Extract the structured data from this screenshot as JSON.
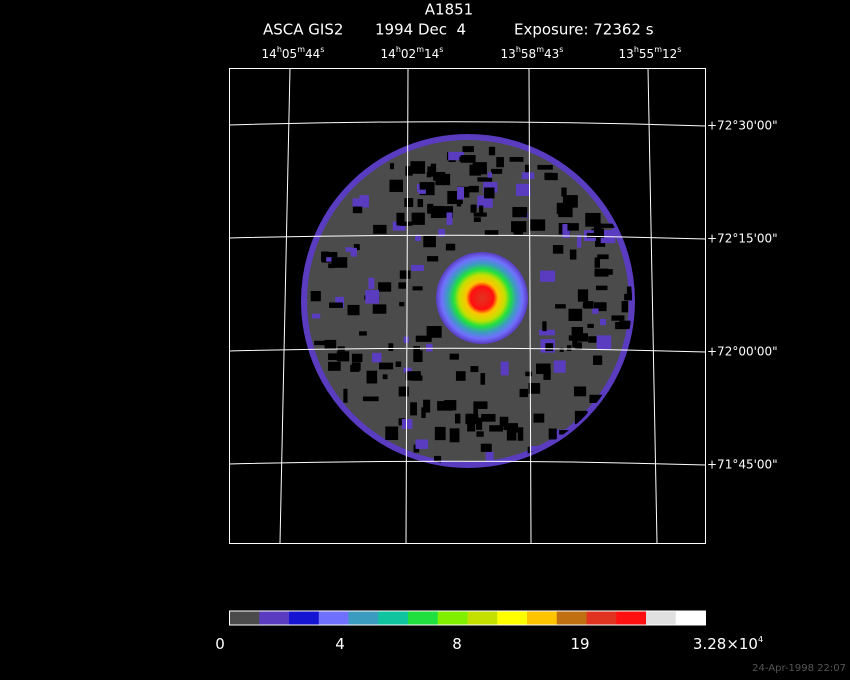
{
  "header": {
    "title": "A1851",
    "instrument": "ASCA GIS2",
    "date": "1994 Dec  4",
    "exposure": "Exposure: 72362 s"
  },
  "ra_labels": [
    [
      "14",
      "h",
      "05",
      "m",
      "44",
      "s"
    ],
    [
      "14",
      "h",
      "02",
      "m",
      "14",
      "s"
    ],
    [
      "13",
      "h",
      "58",
      "m",
      "43",
      "s"
    ],
    [
      "13",
      "h",
      "55",
      "m",
      "12",
      "s"
    ]
  ],
  "dec_labels": [
    "+72°30'00\"",
    "+72°15'00\"",
    "+72°00'00\"",
    "+71°45'00\""
  ],
  "colorbar": {
    "colors": [
      "#4b4b4b",
      "#5a3cc0",
      "#1414d2",
      "#7070ff",
      "#3c9cc0",
      "#10c4a0",
      "#20e040",
      "#80f000",
      "#c4e000",
      "#ffff00",
      "#ffc400",
      "#c07010",
      "#e03420",
      "#ff1010",
      "#e0e0e0",
      "#ffffff"
    ],
    "labels": [
      [
        "0"
      ],
      [
        "4"
      ],
      [
        "8"
      ],
      [
        "19"
      ],
      [
        "3.28×10",
        "4"
      ]
    ]
  },
  "timestamp": "24-Apr-1998 22:07"
}
